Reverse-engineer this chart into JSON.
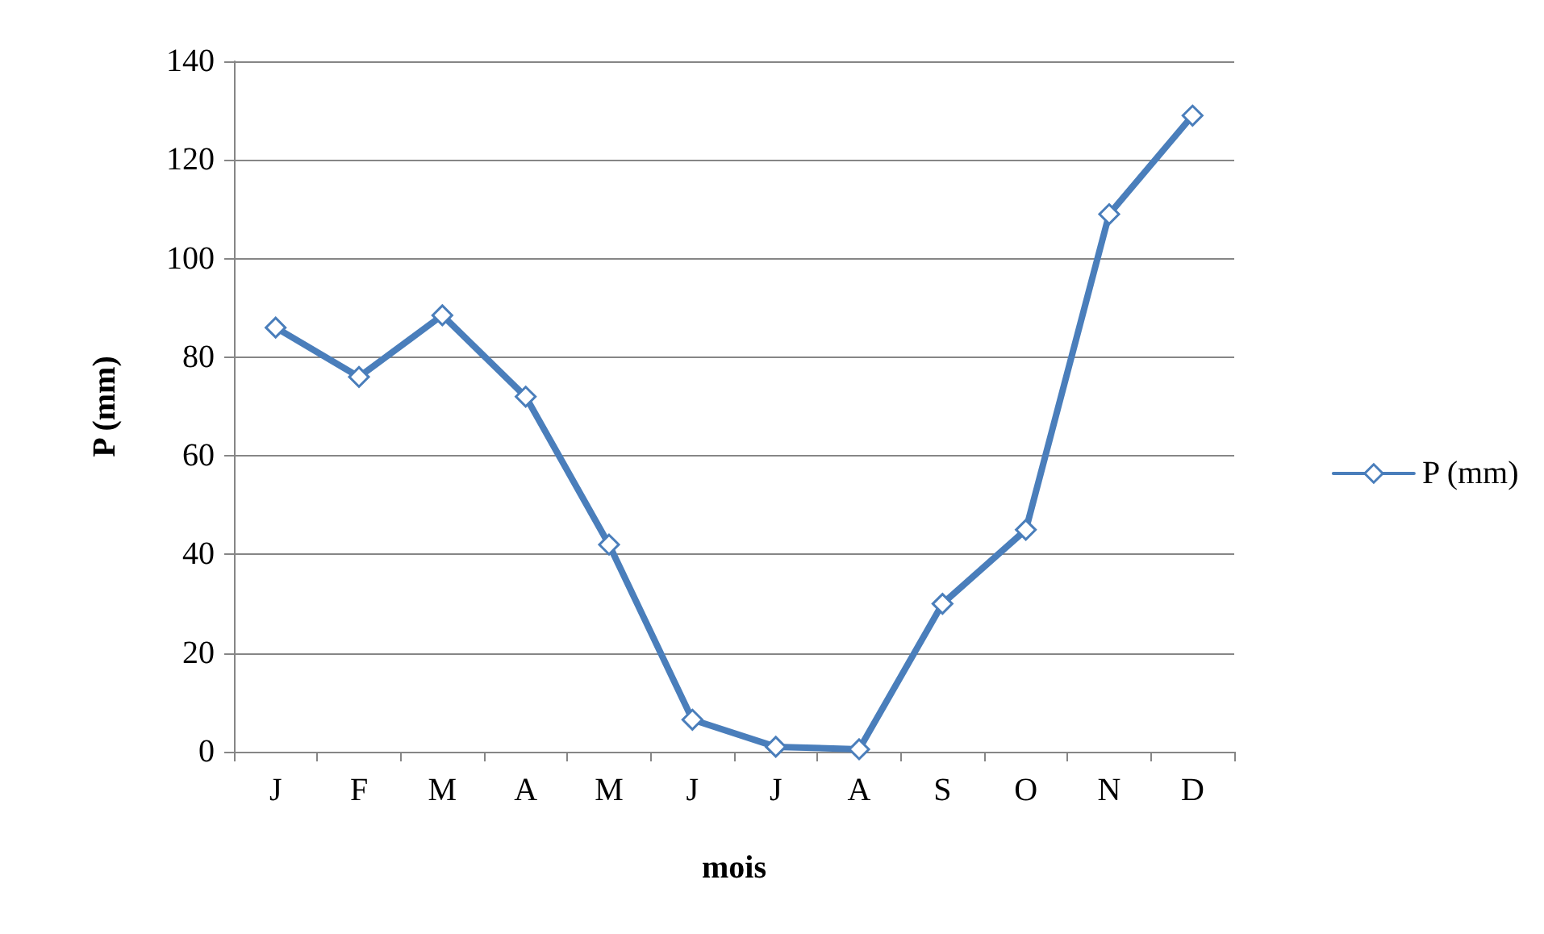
{
  "chart_data": {
    "type": "line",
    "xlabel": "mois",
    "ylabel": "P (mm)",
    "categories": [
      "J",
      "F",
      "M",
      "A",
      "M",
      "J",
      "J",
      "A",
      "S",
      "O",
      "N",
      "D"
    ],
    "series": [
      {
        "name": "P (mm)",
        "color": "#4a7ebb",
        "values": [
          86,
          76,
          88.5,
          72,
          42,
          6.5,
          1,
          0.5,
          30,
          45,
          109,
          129
        ]
      }
    ],
    "ylim": [
      0,
      140
    ],
    "yticks": [
      0,
      20,
      40,
      60,
      80,
      100,
      120,
      140
    ],
    "grid": "y",
    "legend": "right",
    "marker": "diamond",
    "line_style": "solid"
  }
}
